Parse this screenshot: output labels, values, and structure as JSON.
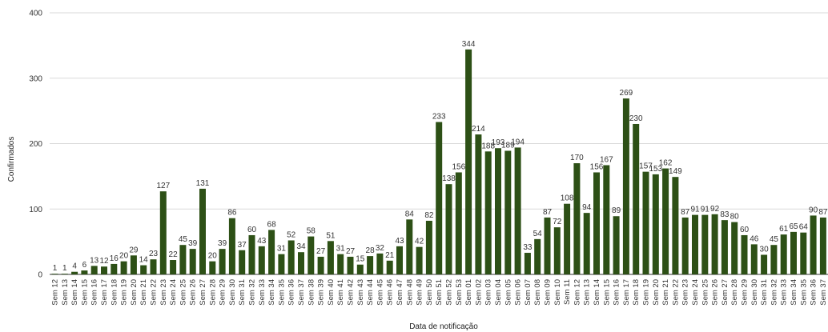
{
  "chart_data": {
    "type": "bar",
    "title": "",
    "xlabel": "Data de notificação",
    "ylabel": "Confirmados",
    "ylim": [
      0,
      400
    ],
    "yticks": [
      0,
      100,
      200,
      300,
      400
    ],
    "grid": true,
    "legend": "none",
    "bar_color": "#2d5016",
    "categories": [
      "Sem 12",
      "Sem 13",
      "Sem 14",
      "Sem 15",
      "Sem 16",
      "Sem 17",
      "Sem 18",
      "Sem 19",
      "Sem 20",
      "Sem 21",
      "Sem 22",
      "Sem 23",
      "Sem 24",
      "Sem 25",
      "Sem 26",
      "Sem 27",
      "Sem 28",
      "Sem 29",
      "Sem 30",
      "Sem 31",
      "Sem 32",
      "Sem 33",
      "Sem 34",
      "Sem 35",
      "Sem 36",
      "Sem 37",
      "Sem 38",
      "Sem 39",
      "Sem 40",
      "Sem 41",
      "Sem 42",
      "Sem 43",
      "Sem 44",
      "Sem 45",
      "Sem 46",
      "Sem 47",
      "Sem 48",
      "Sem 49",
      "Sem 50",
      "Sem 51",
      "Sem 52",
      "Sem 53",
      "Sem 01",
      "Sem 02",
      "Sem 03",
      "Sem 04",
      "Sem 05",
      "Sem 06",
      "Sem 07",
      "Sem 08",
      "Sem 09",
      "Sem 10",
      "Sem 11",
      "Sem 12",
      "Sem 13",
      "Sem 14",
      "Sem 15",
      "Sem 16",
      "Sem 17",
      "Sem 18",
      "Sem 19",
      "Sem 20",
      "Sem 21",
      "Sem 22",
      "Sem 23",
      "Sem 24",
      "Sem 25",
      "Sem 26",
      "Sem 27",
      "Sem 28",
      "Sem 29",
      "Sem 30",
      "Sem 31",
      "Sem 32",
      "Sem 33",
      "Sem 34",
      "Sem 35",
      "Sem 36",
      "Sem 37"
    ],
    "values": [
      1,
      1,
      4,
      6,
      13,
      12,
      16,
      20,
      29,
      14,
      23,
      127,
      22,
      45,
      39,
      131,
      20,
      39,
      86,
      37,
      60,
      43,
      68,
      31,
      52,
      34,
      58,
      27,
      51,
      31,
      27,
      15,
      28,
      32,
      21,
      43,
      84,
      42,
      82,
      233,
      138,
      156,
      344,
      214,
      188,
      193,
      189,
      194,
      33,
      54,
      87,
      72,
      108,
      170,
      94,
      156,
      167,
      89,
      269,
      230,
      157,
      153,
      162,
      149,
      87,
      91,
      91,
      92,
      83,
      80,
      60,
      46,
      30,
      45,
      61,
      65,
      64,
      90,
      87
    ],
    "data_labels": [
      "1",
      "1",
      "4",
      "6",
      "13",
      "12",
      "16",
      "20",
      "29",
      "14",
      "23",
      "127",
      "22",
      "45",
      "39",
      "131",
      "20",
      "39",
      "86",
      "37",
      "60",
      "43",
      "68",
      "31",
      "52",
      "34",
      "58",
      "27",
      "51",
      "31",
      "27",
      "15",
      "28",
      "32",
      "21",
      "43",
      "84",
      "42",
      "82",
      "233",
      "138",
      "156",
      "344",
      "214",
      "188",
      "193",
      "189",
      "194",
      "33",
      "54",
      "87",
      "72",
      "108",
      "170",
      "94",
      "156",
      "167",
      "89",
      "269",
      "230",
      "157",
      "153",
      "162",
      "149",
      "87",
      "91",
      "91",
      "92",
      "83",
      "80",
      "60",
      "46",
      "30",
      "45",
      "61",
      "65",
      "64",
      "90",
      "87"
    ]
  }
}
